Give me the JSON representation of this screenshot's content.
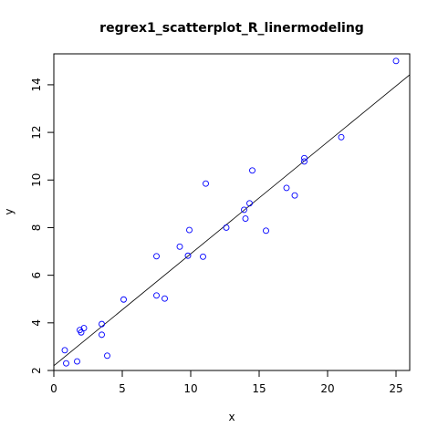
{
  "chart_data": {
    "type": "scatter",
    "title": "regrex1_scatterplot_R_linermodeling",
    "xlabel": "x",
    "ylabel": "y",
    "xlim": [
      0,
      26
    ],
    "ylim": [
      2,
      15.3
    ],
    "x_ticks": [
      0,
      5,
      10,
      15,
      20,
      25
    ],
    "y_ticks": [
      2,
      4,
      6,
      8,
      10,
      12,
      14
    ],
    "grid": false,
    "legend": "none",
    "point_color": "#0000ff",
    "line_color": "#000000",
    "points": [
      {
        "x": 0.8,
        "y": 2.85
      },
      {
        "x": 0.9,
        "y": 2.3
      },
      {
        "x": 1.7,
        "y": 2.38
      },
      {
        "x": 1.9,
        "y": 3.7
      },
      {
        "x": 2.0,
        "y": 3.6
      },
      {
        "x": 2.2,
        "y": 3.78
      },
      {
        "x": 3.5,
        "y": 3.95
      },
      {
        "x": 3.5,
        "y": 3.5
      },
      {
        "x": 3.9,
        "y": 2.62
      },
      {
        "x": 5.1,
        "y": 4.98
      },
      {
        "x": 7.5,
        "y": 6.8
      },
      {
        "x": 7.5,
        "y": 5.15
      },
      {
        "x": 8.1,
        "y": 5.02
      },
      {
        "x": 9.2,
        "y": 7.2
      },
      {
        "x": 9.8,
        "y": 6.82
      },
      {
        "x": 9.9,
        "y": 7.9
      },
      {
        "x": 10.9,
        "y": 6.78
      },
      {
        "x": 11.1,
        "y": 9.85
      },
      {
        "x": 12.6,
        "y": 8.0
      },
      {
        "x": 13.9,
        "y": 8.75
      },
      {
        "x": 14.0,
        "y": 8.38
      },
      {
        "x": 14.3,
        "y": 9.02
      },
      {
        "x": 14.5,
        "y": 10.4
      },
      {
        "x": 15.5,
        "y": 7.87
      },
      {
        "x": 17.0,
        "y": 9.67
      },
      {
        "x": 17.6,
        "y": 9.35
      },
      {
        "x": 18.3,
        "y": 10.78
      },
      {
        "x": 18.3,
        "y": 10.92
      },
      {
        "x": 21.0,
        "y": 11.8
      },
      {
        "x": 25.0,
        "y": 15.0
      }
    ],
    "regression_line": {
      "intercept": 2.2,
      "slope": 0.47
    }
  }
}
